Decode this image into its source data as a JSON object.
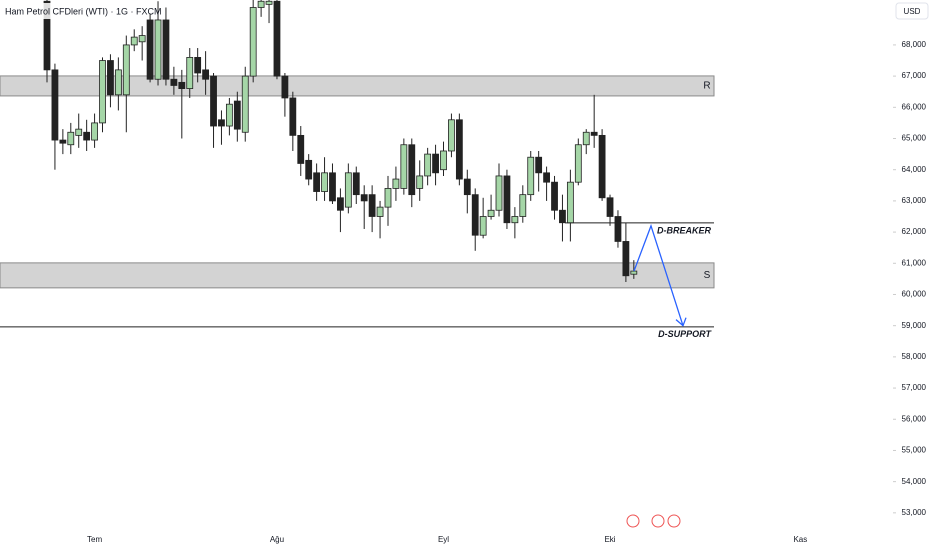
{
  "chart_data": {
    "type": "candlestick",
    "title": "Ham Petrol CFDleri (WTI) · 1G · FXCM",
    "currency": "USD",
    "up_color": "#a5d6a7",
    "down_color": "#222222",
    "categories": [
      null,
      null,
      null,
      null,
      null,
      null,
      "Tem",
      null,
      null,
      null,
      null,
      null,
      null,
      null,
      null,
      null,
      null,
      null,
      null,
      null,
      null,
      null,
      null,
      null,
      null,
      null,
      null,
      null,
      null,
      "Ağu",
      null,
      null,
      null,
      null,
      null,
      null,
      null,
      null,
      null,
      null,
      null,
      null,
      null,
      null,
      null,
      null,
      null,
      null,
      null,
      null,
      "Eyl",
      null,
      null,
      null,
      null,
      null,
      null,
      null,
      null,
      null,
      null,
      null,
      null,
      null,
      null,
      null,
      null,
      null,
      null,
      null,
      null,
      "Eki",
      null,
      null,
      null,
      null,
      null,
      null,
      null,
      null,
      null,
      null,
      null,
      null,
      null,
      null,
      null,
      null,
      null,
      null,
      null,
      null,
      null,
      null,
      null,
      "Kas"
    ],
    "open": [
      69400,
      67200,
      64950,
      64800,
      65100,
      65200,
      64950,
      65500,
      67500,
      66400,
      66400,
      68000,
      68100,
      68800,
      66900,
      68800,
      66900,
      66800,
      66600,
      67600,
      67200,
      67000,
      65600,
      65400,
      66200,
      65200,
      67000,
      69200,
      69300,
      69400,
      67000,
      66300,
      65100,
      64300,
      63900,
      63300,
      63900,
      63100,
      62800,
      63900,
      63200,
      63200,
      62500,
      62800,
      63400,
      63400,
      64800,
      63400,
      63800,
      64500,
      64000,
      64600,
      65600,
      63700,
      63200,
      61900,
      62500,
      62700,
      63800,
      62300,
      62500,
      63200,
      64400,
      63900,
      63600,
      62700,
      62300,
      63600,
      64800,
      65200,
      65100,
      63100,
      62500,
      61700,
      60650,
      null,
      null,
      null,
      null,
      null,
      null,
      null,
      null,
      null,
      null,
      null,
      null,
      null,
      null,
      null,
      null,
      null,
      null,
      null,
      null,
      null
    ],
    "high": [
      69440,
      67400,
      65300,
      65500,
      65800,
      65600,
      65800,
      67600,
      67700,
      67600,
      68300,
      68500,
      68600,
      69000,
      69400,
      69200,
      67300,
      67200,
      67900,
      67900,
      67800,
      67100,
      65900,
      66300,
      66500,
      67300,
      69440,
      69440,
      69440,
      69440,
      67100,
      66500,
      65400,
      64500,
      64200,
      64400,
      64200,
      63400,
      64200,
      64100,
      63500,
      63500,
      63000,
      63800,
      64100,
      65000,
      65000,
      64300,
      64700,
      64800,
      64900,
      65800,
      65800,
      64000,
      63400,
      63100,
      63200,
      64200,
      64000,
      62800,
      63500,
      64600,
      64600,
      64100,
      63800,
      63200,
      64000,
      65000,
      65300,
      66400,
      65300,
      63200,
      62700,
      62300,
      61100,
      null,
      null,
      null,
      null,
      null,
      null,
      null,
      null,
      null,
      null,
      null,
      null,
      null,
      null,
      null,
      null,
      null,
      null,
      null,
      null,
      null
    ],
    "low": [
      66800,
      64000,
      64500,
      64500,
      64700,
      64600,
      64700,
      65200,
      66000,
      65900,
      65200,
      67800,
      67500,
      66800,
      66700,
      66700,
      66400,
      65000,
      66300,
      66800,
      66400,
      64700,
      64800,
      65100,
      64900,
      64900,
      66800,
      68900,
      68700,
      66900,
      65700,
      64600,
      63800,
      63500,
      63000,
      63000,
      62900,
      62000,
      62600,
      62900,
      62100,
      62000,
      61800,
      62200,
      63000,
      63200,
      62800,
      63000,
      63500,
      63500,
      63800,
      64400,
      63500,
      62600,
      61400,
      61800,
      62400,
      62500,
      62100,
      61800,
      62300,
      63000,
      63300,
      63000,
      62400,
      61700,
      61700,
      63500,
      64500,
      64700,
      63000,
      62200,
      61500,
      60400,
      60500,
      null,
      null,
      null,
      null,
      null,
      null,
      null,
      null,
      null,
      null,
      null,
      null,
      null,
      null,
      null,
      null,
      null,
      null,
      null,
      null,
      null
    ],
    "close": [
      67200,
      64950,
      64850,
      65200,
      65300,
      64950,
      65500,
      67500,
      66400,
      67200,
      68000,
      68250,
      68300,
      66900,
      68800,
      66900,
      66700,
      66600,
      67600,
      67100,
      66900,
      65400,
      65400,
      66100,
      65300,
      67000,
      69200,
      69400,
      69400,
      67000,
      66300,
      65100,
      64200,
      63700,
      63300,
      63900,
      63000,
      62700,
      63900,
      63200,
      63000,
      62500,
      62800,
      63400,
      63700,
      64800,
      63200,
      63800,
      64500,
      63900,
      64600,
      65600,
      63700,
      63200,
      61900,
      62500,
      62700,
      63800,
      62300,
      62500,
      63200,
      64400,
      63900,
      63600,
      62700,
      62300,
      63600,
      64800,
      65200,
      65100,
      63100,
      62500,
      61700,
      60600,
      60750,
      null,
      null,
      null,
      null,
      null,
      null,
      null,
      null,
      null,
      null,
      null,
      null,
      null,
      null,
      null,
      null,
      null,
      null,
      null,
      null,
      null
    ],
    "ylim": [
      52450,
      69440
    ],
    "yticks": [
      {
        "value": 53000,
        "label": "53,000"
      },
      {
        "value": 54000,
        "label": "54,000"
      },
      {
        "value": 55000,
        "label": "55,000"
      },
      {
        "value": 56000,
        "label": "56,000"
      },
      {
        "value": 57000,
        "label": "57,000"
      },
      {
        "value": 58000,
        "label": "58,000"
      },
      {
        "value": 59000,
        "label": "59,000"
      },
      {
        "value": 60000,
        "label": "60,000"
      },
      {
        "value": 61000,
        "label": "61,000"
      },
      {
        "value": 62000,
        "label": "62,000"
      },
      {
        "value": 63000,
        "label": "63,000"
      },
      {
        "value": 64000,
        "label": "64,000"
      },
      {
        "value": 65000,
        "label": "65,000"
      },
      {
        "value": 66000,
        "label": "66,000"
      },
      {
        "value": 67000,
        "label": "67,000"
      },
      {
        "value": 68000,
        "label": "68,000"
      }
    ],
    "zones": [
      {
        "label": "R",
        "low": 66365,
        "high": 67006,
        "color": "#d3d3d3"
      },
      {
        "label": "S",
        "low": 60212,
        "high": 61013,
        "color": "#d3d3d3"
      }
    ],
    "levels": [
      {
        "label": "D-BREAKER",
        "value": 62295,
        "color": "#222222"
      },
      {
        "label": "D-SUPPORT",
        "value": 58962,
        "color": "#222222"
      }
    ],
    "projection": {
      "color": "#2962ff",
      "values": [
        60750,
        62200,
        59000
      ]
    }
  }
}
